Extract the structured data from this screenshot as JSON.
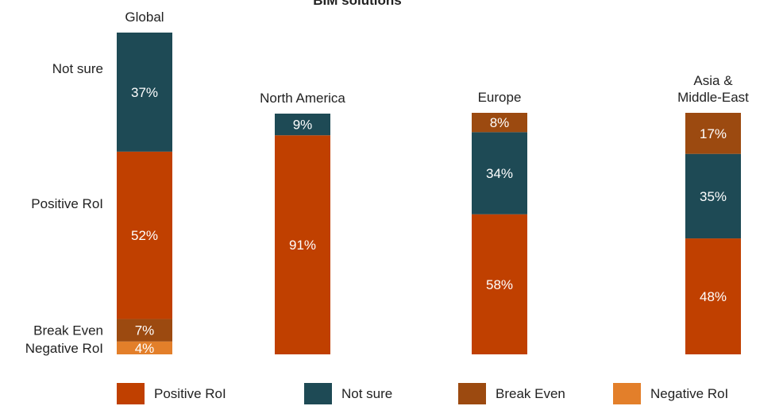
{
  "chart_data": {
    "type": "bar",
    "stacked": true,
    "title": "BIM solutions",
    "categories": [
      "Global",
      "North America",
      "Europe",
      "Asia &\nMiddle-East"
    ],
    "series": [
      {
        "name": "Positive RoI",
        "color": "#c04000",
        "values": [
          52,
          91,
          58,
          48
        ]
      },
      {
        "name": "Not sure",
        "color": "#1e4a55",
        "values": [
          37,
          9,
          34,
          35
        ]
      },
      {
        "name": "Break Even",
        "color": "#9c4a10",
        "values": [
          7,
          0,
          8,
          17
        ]
      },
      {
        "name": "Negative RoI",
        "color": "#e37f2a",
        "values": [
          4,
          0,
          0,
          0
        ]
      }
    ],
    "bars": [
      {
        "category": "Global",
        "stack_order": [
          "Negative RoI",
          "Break Even",
          "Positive RoI",
          "Not sure"
        ]
      },
      {
        "category": "North America",
        "stack_order": [
          "Positive RoI",
          "Not sure"
        ]
      },
      {
        "category": "Europe",
        "stack_order": [
          "Positive RoI",
          "Not sure",
          "Break Even"
        ]
      },
      {
        "category": "Asia &\nMiddle-East",
        "stack_order": [
          "Positive RoI",
          "Not sure",
          "Break Even"
        ]
      }
    ],
    "side_labels": [
      "Not sure",
      "Positive RoI",
      "Break Even",
      "Negative RoI"
    ],
    "ylim": [
      0,
      100
    ],
    "unit": "%",
    "legend": {
      "position": "bottom",
      "items": [
        "Positive RoI",
        "Not sure",
        "Break Even",
        "Negative RoI"
      ]
    }
  }
}
